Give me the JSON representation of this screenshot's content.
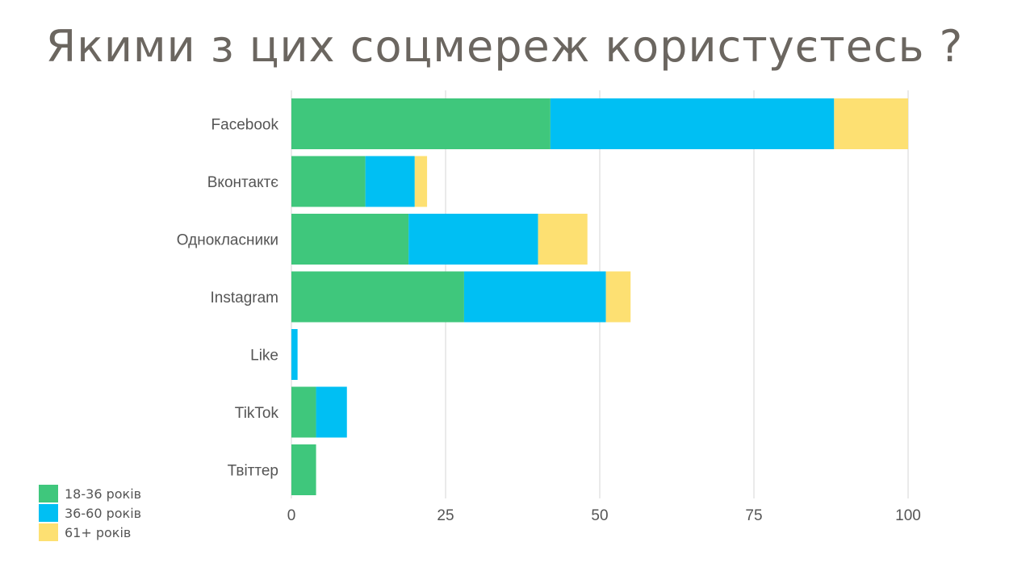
{
  "title": "Якими з цих соцмереж користуєтесь ?",
  "colors": {
    "series_1": "#3fc77c",
    "series_2": "#00bff3",
    "series_3": "#fde072"
  },
  "chart_data": {
    "type": "bar",
    "orientation": "horizontal",
    "stacked": true,
    "categories": [
      "Facebook",
      "Вконтактє",
      "Однокласники",
      "Instagram",
      "Like",
      "TikTok",
      "Твіттер"
    ],
    "series": [
      {
        "name": "18-36 років",
        "values": [
          42,
          12,
          19,
          28,
          0,
          4,
          4
        ]
      },
      {
        "name": "36-60 років",
        "values": [
          46,
          8,
          21,
          23,
          1,
          5,
          0
        ]
      },
      {
        "name": "61+ років",
        "values": [
          12,
          2,
          8,
          4,
          0,
          0,
          0
        ]
      }
    ],
    "xlim": [
      0,
      100
    ],
    "xticks": [
      "0",
      "25",
      "50",
      "75",
      "100"
    ],
    "grid": true,
    "legend_position": "bottom-left"
  }
}
